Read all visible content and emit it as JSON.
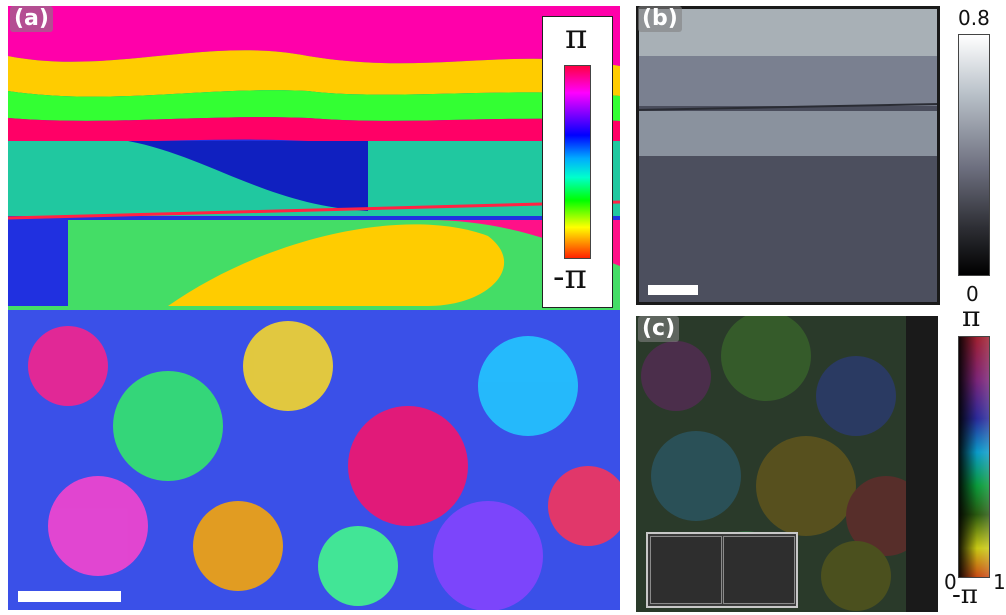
{
  "panels": {
    "a": {
      "label": "(a)"
    },
    "b": {
      "label": "(b)"
    },
    "c": {
      "label": "(c)"
    }
  },
  "colorbars": {
    "a": {
      "top": "π",
      "bottom": "-π"
    },
    "b": {
      "top": "0.8",
      "bottom": "0"
    },
    "c": {
      "top": "π",
      "bottom": "-π",
      "left": "0",
      "right": "1"
    }
  }
}
